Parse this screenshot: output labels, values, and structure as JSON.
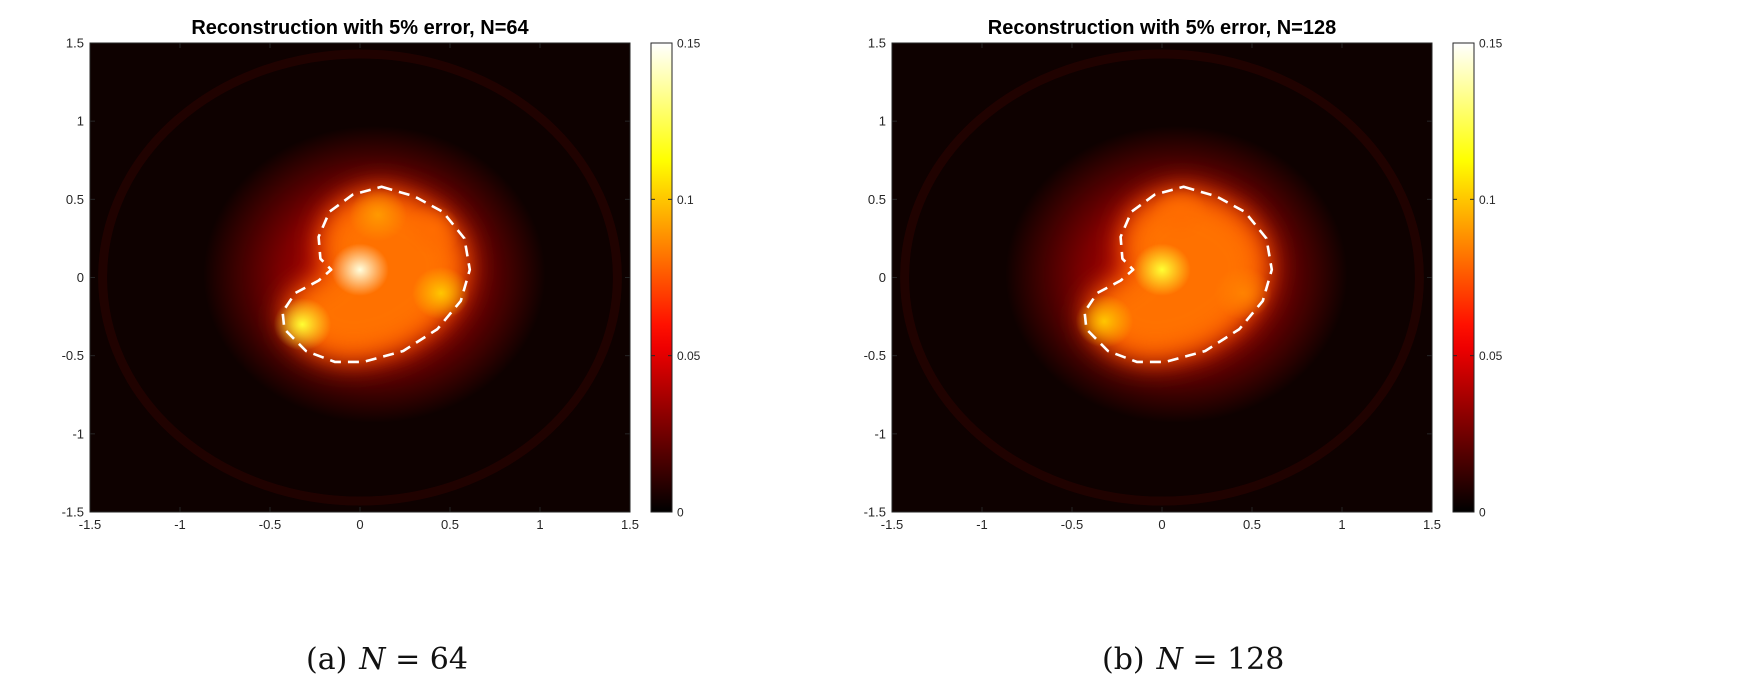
{
  "colors": {
    "background": "#ffffff",
    "axis": "#262626",
    "contour": "#ffffff"
  },
  "chart_data": [
    {
      "type": "heatmap",
      "title": "Reconstruction with 5% error, N=64",
      "colormap": "hot",
      "xlim": [
        -1.5,
        1.5
      ],
      "ylim": [
        -1.5,
        1.5
      ],
      "xticks": [
        "-1.5",
        "-1",
        "-0.5",
        "0",
        "0.5",
        "1",
        "1.5"
      ],
      "yticks": [
        "1.5",
        "1",
        "0.5",
        "0",
        "-0.5",
        "-1",
        "-1.5"
      ],
      "colorbar": {
        "limits": [
          0,
          0.15
        ],
        "ticks": [
          "0.15",
          "0.1",
          "0.05",
          "0"
        ]
      },
      "peaks": [
        {
          "x": 0.0,
          "y": 0.05,
          "value": 0.145
        },
        {
          "x": -0.32,
          "y": -0.3,
          "value": 0.12
        },
        {
          "x": 0.45,
          "y": -0.1,
          "value": 0.1
        },
        {
          "x": 0.1,
          "y": 0.4,
          "value": 0.09
        },
        {
          "x": 0.4,
          "y": 0.3,
          "value": 0.08
        }
      ],
      "caption": {
        "label": "(a)",
        "var": "N",
        "eq": " = 64"
      }
    },
    {
      "type": "heatmap",
      "title": "Reconstruction with 5% error, N=128",
      "colormap": "hot",
      "xlim": [
        -1.5,
        1.5
      ],
      "ylim": [
        -1.5,
        1.5
      ],
      "xticks": [
        "-1.5",
        "-1",
        "-0.5",
        "0",
        "0.5",
        "1",
        "1.5"
      ],
      "yticks": [
        "1.5",
        "1",
        "0.5",
        "0",
        "-0.5",
        "-1",
        "-1.5"
      ],
      "colorbar": {
        "limits": [
          0,
          0.15
        ],
        "ticks": [
          "0.15",
          "0.1",
          "0.05",
          "0"
        ]
      },
      "peaks": [
        {
          "x": 0.0,
          "y": 0.05,
          "value": 0.12
        },
        {
          "x": -0.32,
          "y": -0.28,
          "value": 0.1
        },
        {
          "x": 0.45,
          "y": -0.1,
          "value": 0.085
        },
        {
          "x": 0.1,
          "y": 0.4,
          "value": 0.08
        }
      ],
      "caption": {
        "label": "(b)",
        "var": "N",
        "eq": " = 128"
      }
    }
  ]
}
